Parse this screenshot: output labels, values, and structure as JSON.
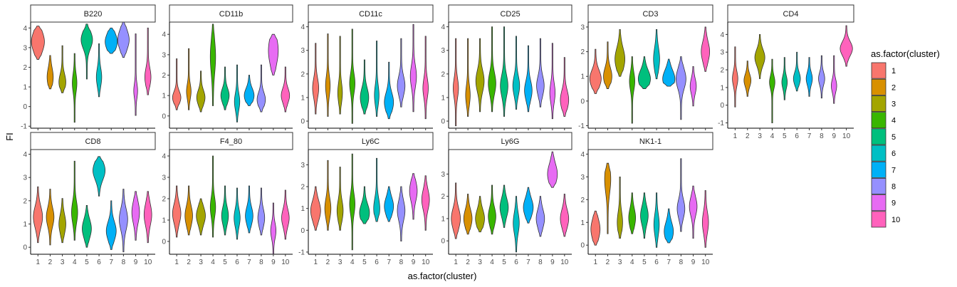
{
  "chart_data": {
    "type": "violin",
    "xlabel": "as.factor(cluster)",
    "ylabel": "FI",
    "legend": {
      "title": "as.factor(cluster)",
      "position": "right",
      "entries": [
        "1",
        "2",
        "3",
        "4",
        "5",
        "6",
        "7",
        "8",
        "9",
        "10"
      ],
      "colors": [
        "#F8766D",
        "#D89000",
        "#A3A500",
        "#39B600",
        "#00BF7D",
        "#00BFC4",
        "#00B0F6",
        "#9590FF",
        "#E76BF3",
        "#FF62BC"
      ]
    },
    "categories": [
      "1",
      "2",
      "3",
      "4",
      "5",
      "6",
      "7",
      "8",
      "9",
      "10"
    ],
    "panels": [
      {
        "title": "B220",
        "ylim": [
          -1.1,
          4.3
        ],
        "yticks": [
          -1,
          0,
          1,
          2,
          3,
          4
        ],
        "violins": [
          [
            2.4,
            3.3,
            4.1,
            0.55,
            0.8
          ],
          [
            0.9,
            1.5,
            2.6,
            0.45,
            0.35
          ],
          [
            0.7,
            1.25,
            3.1,
            0.4,
            0.4
          ],
          [
            -0.8,
            1.2,
            2.7,
            0.45,
            0.25
          ],
          [
            1.4,
            3.4,
            4.2,
            0.45,
            0.7
          ],
          [
            0.5,
            1.5,
            3.2,
            0.45,
            0.3
          ],
          [
            2.7,
            3.3,
            4.0,
            0.45,
            0.75
          ],
          [
            2.5,
            3.4,
            4.3,
            0.5,
            0.7
          ],
          [
            -0.45,
            0.8,
            3.7,
            0.35,
            0.2
          ],
          [
            0.6,
            1.5,
            4.0,
            0.45,
            0.35
          ]
        ]
      },
      {
        "title": "CD11b",
        "ylim": [
          -0.6,
          4.6
        ],
        "yticks": [
          0,
          1,
          2,
          3,
          4
        ],
        "violins": [
          [
            0.3,
            0.9,
            2.8,
            0.3,
            0.5
          ],
          [
            0.3,
            1.2,
            3.3,
            0.35,
            0.25
          ],
          [
            0.2,
            0.9,
            2.2,
            0.35,
            0.5
          ],
          [
            0.5,
            2.9,
            4.5,
            0.8,
            0.3
          ],
          [
            0.3,
            1.0,
            2.4,
            0.35,
            0.5
          ],
          [
            -0.3,
            0.7,
            2.5,
            0.4,
            0.3
          ],
          [
            0.5,
            1.0,
            2.0,
            0.35,
            0.6
          ],
          [
            0.2,
            0.8,
            2.5,
            0.35,
            0.5
          ],
          [
            2.0,
            3.2,
            4.0,
            0.7,
            0.6
          ],
          [
            0.2,
            1.0,
            2.4,
            0.35,
            0.5
          ]
        ]
      },
      {
        "title": "CD11c",
        "ylim": [
          -0.3,
          4.2
        ],
        "yticks": [
          0,
          1,
          2,
          3,
          4
        ],
        "violins": [
          [
            0.3,
            1.4,
            3.3,
            0.4,
            0.35
          ],
          [
            0.2,
            1.5,
            3.7,
            0.4,
            0.25
          ],
          [
            0.3,
            1.2,
            3.6,
            0.4,
            0.25
          ],
          [
            -0.1,
            1.6,
            3.9,
            0.4,
            0.3
          ],
          [
            0.3,
            1.0,
            2.6,
            0.4,
            0.5
          ],
          [
            0.2,
            1.1,
            3.4,
            0.4,
            0.25
          ],
          [
            0.1,
            0.8,
            2.5,
            0.4,
            0.55
          ],
          [
            0.6,
            1.5,
            3.5,
            0.4,
            0.45
          ],
          [
            0.4,
            1.9,
            4.1,
            0.45,
            0.35
          ],
          [
            0.1,
            1.4,
            3.6,
            0.4,
            0.3
          ]
        ]
      },
      {
        "title": "CD25",
        "ylim": [
          -0.3,
          4.2
        ],
        "yticks": [
          0,
          1,
          2,
          3,
          4
        ],
        "violins": [
          [
            -0.2,
            1.4,
            3.5,
            0.4,
            0.3
          ],
          [
            0.2,
            1.1,
            3.5,
            0.4,
            0.25
          ],
          [
            0.4,
            1.7,
            3.5,
            0.45,
            0.5
          ],
          [
            0.4,
            1.6,
            4.0,
            0.45,
            0.45
          ],
          [
            0.2,
            1.5,
            4.0,
            0.45,
            0.45
          ],
          [
            0.5,
            1.5,
            3.6,
            0.4,
            0.4
          ],
          [
            0.4,
            1.3,
            3.2,
            0.4,
            0.45
          ],
          [
            0.6,
            1.5,
            3.5,
            0.4,
            0.45
          ],
          [
            0.1,
            1.2,
            3.3,
            0.4,
            0.3
          ],
          [
            0.2,
            0.9,
            2.7,
            0.4,
            0.5
          ]
        ]
      },
      {
        "title": "CD3",
        "ylim": [
          -1.1,
          3.2
        ],
        "yticks": [
          -1,
          0,
          1,
          2,
          3
        ],
        "violins": [
          [
            0.3,
            0.9,
            2.1,
            0.35,
            0.7
          ],
          [
            0.5,
            1.0,
            2.4,
            0.35,
            0.5
          ],
          [
            1.0,
            1.7,
            2.9,
            0.45,
            0.6
          ],
          [
            -0.9,
            0.8,
            1.8,
            0.35,
            0.3
          ],
          [
            0.5,
            0.9,
            1.8,
            0.35,
            0.75
          ],
          [
            0.9,
            1.7,
            2.9,
            0.45,
            0.35
          ],
          [
            0.6,
            0.9,
            1.7,
            0.35,
            0.75
          ],
          [
            -0.75,
            0.9,
            1.8,
            0.4,
            0.6
          ],
          [
            -0.2,
            0.6,
            1.4,
            0.3,
            0.35
          ],
          [
            1.2,
            2.0,
            3.0,
            0.4,
            0.5
          ]
        ]
      },
      {
        "title": "CD4",
        "ylim": [
          -1.3,
          4.7
        ],
        "yticks": [
          -1,
          0,
          1,
          2,
          3,
          4
        ],
        "violins": [
          [
            -0.1,
            1.5,
            3.3,
            0.4,
            0.3
          ],
          [
            0.5,
            1.4,
            2.5,
            0.35,
            0.4
          ],
          [
            1.5,
            2.7,
            4.0,
            0.45,
            0.6
          ],
          [
            -1.0,
            1.3,
            2.6,
            0.35,
            0.3
          ],
          [
            0.3,
            1.3,
            2.7,
            0.35,
            0.3
          ],
          [
            0.8,
            1.5,
            3.0,
            0.35,
            0.4
          ],
          [
            0.5,
            1.5,
            2.7,
            0.35,
            0.35
          ],
          [
            0.4,
            1.5,
            2.8,
            0.35,
            0.35
          ],
          [
            0.1,
            1.1,
            2.8,
            0.35,
            0.3
          ],
          [
            2.2,
            3.2,
            4.5,
            0.4,
            0.75
          ]
        ]
      },
      {
        "title": "CD8",
        "ylim": [
          -0.3,
          4.2
        ],
        "yticks": [
          0,
          1,
          2,
          3,
          4
        ],
        "violins": [
          [
            0.2,
            1.3,
            2.6,
            0.45,
            0.55
          ],
          [
            0.1,
            1.3,
            2.5,
            0.4,
            0.45
          ],
          [
            0.2,
            1.0,
            2.1,
            0.4,
            0.4
          ],
          [
            0.3,
            1.5,
            3.7,
            0.45,
            0.35
          ],
          [
            0.0,
            0.8,
            1.8,
            0.4,
            0.55
          ],
          [
            2.2,
            3.3,
            3.9,
            0.4,
            0.75
          ],
          [
            -0.1,
            0.7,
            2.0,
            0.4,
            0.6
          ],
          [
            -0.2,
            1.2,
            2.5,
            0.45,
            0.5
          ],
          [
            0.3,
            1.5,
            2.4,
            0.45,
            0.45
          ],
          [
            0.2,
            1.4,
            2.4,
            0.45,
            0.45
          ]
        ]
      },
      {
        "title": "F4_80",
        "ylim": [
          -0.6,
          4.3
        ],
        "yticks": [
          0,
          1,
          2,
          3,
          4
        ],
        "violins": [
          [
            0.2,
            1.3,
            2.6,
            0.45,
            0.5
          ],
          [
            0.3,
            1.2,
            2.6,
            0.45,
            0.45
          ],
          [
            0.3,
            1.2,
            2.0,
            0.4,
            0.55
          ],
          [
            0.2,
            1.6,
            4.0,
            0.45,
            0.3
          ],
          [
            0.3,
            1.2,
            2.6,
            0.4,
            0.4
          ],
          [
            0.1,
            1.1,
            2.5,
            0.4,
            0.35
          ],
          [
            0.4,
            1.2,
            2.6,
            0.4,
            0.45
          ],
          [
            0.3,
            1.1,
            2.5,
            0.4,
            0.4
          ],
          [
            -0.6,
            0.5,
            1.8,
            0.35,
            0.3
          ],
          [
            0.1,
            1.1,
            2.4,
            0.4,
            0.45
          ]
        ]
      },
      {
        "title": "Ly6C",
        "ylim": [
          -1.1,
          3.7
        ],
        "yticks": [
          -1,
          0,
          1,
          2,
          3
        ],
        "violins": [
          [
            0.0,
            0.9,
            2.0,
            0.45,
            0.6
          ],
          [
            0.0,
            1.0,
            3.2,
            0.45,
            0.35
          ],
          [
            0.0,
            0.9,
            2.9,
            0.45,
            0.35
          ],
          [
            -0.9,
            1.2,
            3.5,
            0.45,
            0.3
          ],
          [
            0.3,
            0.8,
            2.0,
            0.4,
            0.6
          ],
          [
            0.4,
            1.0,
            3.3,
            0.45,
            0.35
          ],
          [
            0.4,
            1.1,
            2.0,
            0.4,
            0.55
          ],
          [
            -0.5,
            0.9,
            2.0,
            0.45,
            0.45
          ],
          [
            0.5,
            1.8,
            2.6,
            0.45,
            0.45
          ],
          [
            0.0,
            1.4,
            2.5,
            0.45,
            0.45
          ]
        ]
      },
      {
        "title": "Ly6G",
        "ylim": [
          -0.6,
          4.1
        ],
        "yticks": [
          0,
          1,
          2,
          3
        ],
        "violins": [
          [
            0.1,
            1.0,
            2.6,
            0.45,
            0.55
          ],
          [
            0.3,
            1.0,
            2.1,
            0.4,
            0.5
          ],
          [
            0.4,
            1.0,
            2.0,
            0.4,
            0.55
          ],
          [
            0.3,
            1.1,
            2.5,
            0.4,
            0.45
          ],
          [
            0.6,
            1.5,
            2.5,
            0.4,
            0.5
          ],
          [
            -0.5,
            0.8,
            2.0,
            0.45,
            0.35
          ],
          [
            0.8,
            1.5,
            2.4,
            0.4,
            0.6
          ],
          [
            0.2,
            1.0,
            2.0,
            0.4,
            0.5
          ],
          [
            2.4,
            3.0,
            4.0,
            0.45,
            0.6
          ],
          [
            0.2,
            1.0,
            2.1,
            0.4,
            0.5
          ]
        ]
      },
      {
        "title": "NK1-1",
        "ylim": [
          -0.4,
          4.2
        ],
        "yticks": [
          0,
          1,
          2,
          3,
          4
        ],
        "violins": [
          [
            0.0,
            0.7,
            1.5,
            0.45,
            0.55
          ],
          [
            0.5,
            2.9,
            3.6,
            0.6,
            0.35
          ],
          [
            0.3,
            1.0,
            3.0,
            0.45,
            0.3
          ],
          [
            0.5,
            1.2,
            2.3,
            0.4,
            0.4
          ],
          [
            0.3,
            1.3,
            2.3,
            0.4,
            0.45
          ],
          [
            -0.1,
            0.9,
            2.3,
            0.45,
            0.3
          ],
          [
            0.1,
            0.6,
            1.6,
            0.4,
            0.55
          ],
          [
            0.6,
            1.6,
            3.8,
            0.4,
            0.45
          ],
          [
            0.3,
            1.7,
            2.6,
            0.4,
            0.45
          ],
          [
            -0.1,
            1.0,
            2.4,
            0.45,
            0.35
          ]
        ]
      }
    ]
  }
}
